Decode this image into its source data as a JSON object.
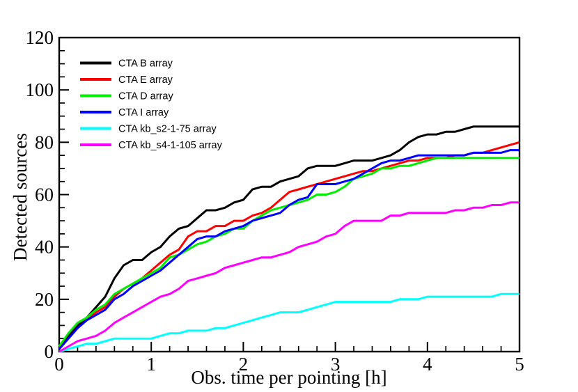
{
  "chart_data": {
    "type": "line",
    "title": "",
    "xlabel": "Obs. time per pointing [h]",
    "ylabel": "Detected sources",
    "xlim": [
      0,
      5
    ],
    "ylim": [
      0,
      120
    ],
    "x_major_ticks": [
      0,
      1,
      2,
      3,
      4,
      5
    ],
    "x_minor_step": 0.2,
    "y_major_ticks": [
      0,
      20,
      40,
      60,
      80,
      100,
      120
    ],
    "y_minor_step": 5,
    "grid": false,
    "legend_position": "top-left",
    "x_start": 0,
    "x_step": 0.1,
    "series": [
      {
        "name": "CTA B array",
        "color": "#000000",
        "values": [
          1,
          6,
          10,
          13,
          17,
          21,
          28,
          33,
          35,
          35,
          38,
          40,
          44,
          47,
          48,
          51,
          54,
          54,
          55,
          57,
          58,
          62,
          63,
          63,
          65,
          66,
          67,
          70,
          71,
          71,
          71,
          72,
          73,
          73,
          73,
          74,
          75,
          77,
          80,
          82,
          83,
          83,
          84,
          84,
          85,
          86,
          86,
          86,
          86,
          86,
          86
        ]
      },
      {
        "name": "CTA E array",
        "color": "#ff0000",
        "values": [
          1,
          5,
          9,
          12,
          15,
          17,
          21,
          24,
          26,
          28,
          31,
          34,
          37,
          39,
          44,
          46,
          46,
          48,
          48,
          50,
          50,
          52,
          53,
          55,
          58,
          61,
          62,
          63,
          64,
          65,
          66,
          67,
          68,
          69,
          69,
          70,
          71,
          72,
          73,
          73,
          74,
          74,
          74,
          75,
          75,
          76,
          76,
          77,
          78,
          79,
          80
        ]
      },
      {
        "name": "CTA D array",
        "color": "#00ee00",
        "values": [
          2,
          7,
          11,
          13,
          16,
          18,
          22,
          24,
          26,
          28,
          30,
          32,
          36,
          37,
          39,
          41,
          42,
          44,
          45,
          47,
          47,
          50,
          52,
          54,
          55,
          56,
          57,
          58,
          60,
          60,
          61,
          63,
          66,
          67,
          68,
          70,
          70,
          71,
          71,
          72,
          73,
          74,
          74,
          74,
          74,
          74,
          74,
          74,
          74,
          74,
          74
        ]
      },
      {
        "name": "CTA I array",
        "color": "#0000ff",
        "values": [
          1,
          5,
          9,
          12,
          14,
          16,
          20,
          22,
          25,
          27,
          29,
          31,
          34,
          37,
          40,
          43,
          44,
          44,
          46,
          47,
          48,
          50,
          51,
          52,
          53,
          56,
          58,
          59,
          64,
          64,
          64,
          65,
          66,
          68,
          70,
          72,
          73,
          73,
          74,
          75,
          75,
          75,
          75,
          75,
          75,
          76,
          76,
          76,
          76,
          77,
          77
        ]
      },
      {
        "name": "CTA kb_s2-1-75 array",
        "color": "#00ffff",
        "values": [
          0,
          1,
          2,
          3,
          3,
          4,
          5,
          5,
          5,
          5,
          5,
          6,
          7,
          7,
          8,
          8,
          8,
          9,
          9,
          10,
          11,
          12,
          13,
          14,
          15,
          15,
          15,
          16,
          17,
          18,
          19,
          19,
          19,
          19,
          19,
          19,
          19,
          20,
          20,
          20,
          21,
          21,
          21,
          21,
          21,
          21,
          21,
          21,
          22,
          22,
          22
        ]
      },
      {
        "name": "CTA kb_s4-1-105 array",
        "color": "#ff00ff",
        "values": [
          0,
          2,
          4,
          5,
          6,
          8,
          11,
          13,
          15,
          17,
          19,
          21,
          22,
          24,
          27,
          28,
          29,
          30,
          32,
          33,
          34,
          35,
          36,
          36,
          37,
          38,
          40,
          41,
          42,
          44,
          45,
          48,
          50,
          50,
          50,
          50,
          52,
          52,
          53,
          53,
          53,
          53,
          53,
          54,
          54,
          55,
          55,
          56,
          56,
          57,
          57
        ]
      }
    ]
  }
}
